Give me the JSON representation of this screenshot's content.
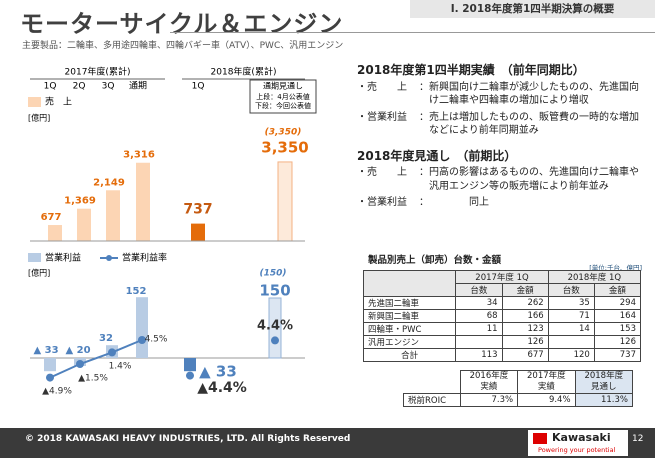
{
  "header": {
    "title": "モーターサイクル＆エンジン",
    "section": "Ⅰ. 2018年度第1四半期決算の概要",
    "subtitle": "主要製品：二輪車、多用途四輪車、四輪バギー車（ATV）、PWC、汎用エンジン"
  },
  "chart_data": [
    {
      "type": "bar",
      "unit": "[億円]",
      "group_labels": [
        "2017年度(累計)",
        "2018年度(累計)"
      ],
      "categories": [
        "1Q",
        "2Q",
        "3Q",
        "通期",
        "1Q",
        "通期見通し"
      ],
      "forecast_note": [
        "上段：4月公表値",
        "下段：今回公表値"
      ],
      "series": [
        {
          "name": "売　上",
          "color": "#fcd5b4",
          "bar_colors": [
            "#fcd5b4",
            "#fcd5b4",
            "#fcd5b4",
            "#fcd5b4",
            "#e46c0a",
            "#fdeada"
          ],
          "values": [
            677,
            1369,
            2149,
            3316,
            737,
            3350
          ],
          "value_labels": [
            "677",
            "1,369",
            "2,149",
            "3,316",
            "737",
            "3,350"
          ]
        }
      ],
      "previous_forecast": {
        "value": 3350,
        "label": "(3,350)"
      },
      "ylim": [
        0,
        5000
      ]
    },
    {
      "type": "bar_line",
      "unit": "[億円]",
      "series": [
        {
          "name": "営業利益",
          "color": "#b8cce4",
          "bar_colors": [
            "#b8cce4",
            "#b8cce4",
            "#b8cce4",
            "#b8cce4",
            "#4f81bd",
            "#dce6f2"
          ],
          "values": [
            -33,
            -20,
            32,
            152,
            -33,
            150
          ],
          "value_labels": [
            "▲ 33",
            "▲ 20",
            "32",
            "152",
            "▲ 33",
            "150"
          ]
        },
        {
          "name": "営業利益率",
          "color": "#4f81bd",
          "axis": "y2",
          "values": [
            -4.9,
            -1.5,
            1.4,
            4.5,
            -4.4,
            4.4
          ],
          "value_labels": [
            "▲4.9%",
            "▲1.5%",
            "1.4%",
            "4.5%",
            "▲4.4%",
            "4.4%"
          ]
        }
      ],
      "previous_forecast": {
        "value": 150,
        "label": "(150)"
      },
      "ylim": [
        -100,
        250
      ],
      "y2lim": [
        -10,
        25
      ]
    }
  ],
  "summary": [
    {
      "heading": "2018年度第1四半期実績　（前年同期比）",
      "items": [
        {
          "label": "売　　上",
          "text": "新興国向け二輪車が減少したものの、先進国向け二輪車や四輪車の増加により増収"
        },
        {
          "label": "営業利益",
          "text": "売上は増加したものの、販管費の一時的な増加などにより前年同期並み"
        }
      ]
    },
    {
      "heading": "2018年度見通し　（前期比）",
      "items": [
        {
          "label": "売　　上",
          "text": "円高の影響はあるものの、先進国向け二輪車や汎用エンジン等の販売増により前年並み"
        },
        {
          "label": "営業利益",
          "text": "同上"
        }
      ]
    }
  ],
  "sales_table": {
    "title": "製品別売上（卸売）台数・金額",
    "unit": "[単位:千台、億円]",
    "periods": [
      "2017年度 1Q",
      "2018年度 1Q"
    ],
    "columns": [
      "台数",
      "金額",
      "台数",
      "金額"
    ],
    "rows": [
      [
        "先進国二輪車",
        34,
        262,
        35,
        294
      ],
      [
        "新興国二輪車",
        68,
        166,
        71,
        164
      ],
      [
        "四輪車・PWC",
        11,
        123,
        14,
        153
      ],
      [
        "汎用エンジン",
        null,
        126,
        null,
        126
      ],
      [
        "合計",
        113,
        677,
        120,
        737
      ]
    ]
  },
  "roic_table": {
    "columns": [
      [
        "2016年度",
        "実績"
      ],
      [
        "2017年度",
        "実績"
      ],
      [
        "2018年度",
        "見通し"
      ]
    ],
    "rows": [
      [
        "税前ROIC",
        "7.3%",
        "9.4%",
        "11.3%"
      ]
    ]
  },
  "footer": {
    "copyright": "© 2018 KAWASAKI HEAVY INDUSTRIES, LTD. All Rights Reserved",
    "logo": "Kawasaki",
    "tagline": "Powering your potential",
    "page": "12"
  }
}
